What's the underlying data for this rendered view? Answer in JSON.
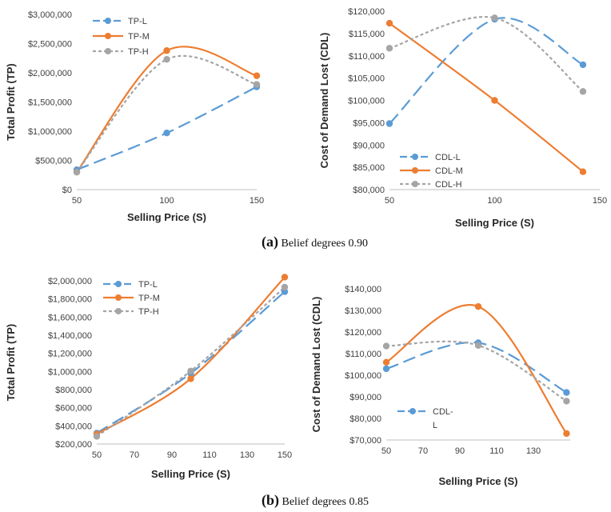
{
  "captions": [
    {
      "letter": "(a)",
      "text": "Belief degrees 0.90"
    },
    {
      "letter": "(b)",
      "text": "Belief degrees 0.85"
    }
  ],
  "chart_data": [
    {
      "id": "a-tp",
      "type": "line",
      "xlabel": "Selling Price (S)",
      "ylabel": "Total Profit (TP)",
      "xlim": [
        50,
        150
      ],
      "x_ticks": [
        50,
        100,
        150
      ],
      "ylim": [
        0,
        3000000
      ],
      "y_ticks": [
        0,
        500000,
        1000000,
        1500000,
        2000000,
        2500000,
        3000000
      ],
      "y_tick_labels": [
        "$0",
        "$500,000",
        "$1,000,000",
        "$1,500,000",
        "$2,000,000",
        "$2,500,000",
        "$3,000,000"
      ],
      "grid": false,
      "legend": "top-left",
      "series": [
        {
          "name": "TP-L",
          "color": "#5B9BD5",
          "dash": "long-dash",
          "x": [
            50,
            100,
            150
          ],
          "values": [
            340000,
            970000,
            1760000
          ]
        },
        {
          "name": "TP-M",
          "color": "#ED7D31",
          "dash": "solid",
          "x": [
            50,
            100,
            150
          ],
          "values": [
            300000,
            2380000,
            1950000
          ]
        },
        {
          "name": "TP-H",
          "color": "#A5A5A5",
          "dash": "dotted",
          "x": [
            50,
            100,
            150
          ],
          "values": [
            300000,
            2230000,
            1800000
          ]
        }
      ]
    },
    {
      "id": "a-cdl",
      "type": "line",
      "xlabel": "Selling Price (S)",
      "ylabel": "Cost of Demand Lost (CDL)",
      "xlim": [
        50,
        150
      ],
      "x_ticks": [
        50,
        100,
        150
      ],
      "ylim": [
        80000,
        120000
      ],
      "y_ticks": [
        80000,
        85000,
        90000,
        95000,
        100000,
        105000,
        110000,
        115000,
        120000
      ],
      "y_tick_labels": [
        "$80,000",
        "$85,000",
        "$90,000",
        "$95,000",
        "$100,000",
        "$105,000",
        "$110,000",
        "$115,000",
        "$120,000"
      ],
      "grid": false,
      "legend": "bottom-left",
      "series": [
        {
          "name": "CDL-L",
          "color": "#5B9BD5",
          "dash": "long-dash",
          "x": [
            50,
            100,
            142
          ],
          "values": [
            94800,
            118200,
            108000
          ]
        },
        {
          "name": "CDL-M",
          "color": "#ED7D31",
          "dash": "solid",
          "x": [
            50,
            100,
            142
          ],
          "values": [
            117300,
            100000,
            84000
          ]
        },
        {
          "name": "CDL-H",
          "color": "#A5A5A5",
          "dash": "dotted",
          "x": [
            50,
            100,
            142
          ],
          "values": [
            111700,
            118500,
            102000
          ]
        }
      ]
    },
    {
      "id": "b-tp",
      "type": "line",
      "xlabel": "Selling Price (S)",
      "ylabel": "Total Profit (TP)",
      "xlim": [
        50,
        150
      ],
      "x_ticks": [
        50,
        70,
        90,
        110,
        130,
        150
      ],
      "ylim": [
        200000,
        2000000
      ],
      "y_ticks": [
        200000,
        400000,
        600000,
        800000,
        1000000,
        1200000,
        1400000,
        1600000,
        1800000,
        2000000
      ],
      "y_tick_labels": [
        "$200,000",
        "$400,000",
        "$600,000",
        "$800,000",
        "$1,000,000",
        "$1,200,000",
        "$1,400,000",
        "$1,600,000",
        "$1,800,000",
        "$2,000,000"
      ],
      "grid": false,
      "legend": "top-left",
      "series": [
        {
          "name": "TP-L",
          "color": "#5B9BD5",
          "dash": "long-dash",
          "x": [
            50,
            100,
            150
          ],
          "values": [
            320000,
            980000,
            1880000
          ]
        },
        {
          "name": "TP-M",
          "color": "#ED7D31",
          "dash": "solid",
          "x": [
            50,
            100,
            150
          ],
          "values": [
            310000,
            920000,
            2040000
          ]
        },
        {
          "name": "TP-H",
          "color": "#A5A5A5",
          "dash": "dotted",
          "x": [
            50,
            100,
            150
          ],
          "values": [
            285000,
            1005000,
            1930000
          ]
        }
      ]
    },
    {
      "id": "b-cdl",
      "type": "line",
      "xlabel": "Selling Price (S)",
      "ylabel": "Cost of Demand Lost (CDL)",
      "xlim": [
        50,
        150
      ],
      "x_ticks": [
        50,
        70,
        90,
        110,
        130
      ],
      "ylim": [
        70000,
        140000
      ],
      "y_ticks": [
        70000,
        80000,
        90000,
        100000,
        110000,
        120000,
        130000,
        140000
      ],
      "y_tick_labels": [
        "$70,000",
        "$80,000",
        "$90,000",
        "$100,000",
        "$110,000",
        "$120,000",
        "$130,000",
        "$140,000"
      ],
      "grid": false,
      "legend": "bottom-left",
      "series": [
        {
          "name": "CDL-L",
          "color": "#5B9BD5",
          "dash": "long-dash",
          "x": [
            50,
            100,
            148
          ],
          "values": [
            103000,
            115000,
            92000
          ]
        },
        {
          "name": "",
          "color": "#ED7D31",
          "dash": "solid",
          "x": [
            50,
            100,
            148
          ],
          "values": [
            106000,
            131800,
            73000
          ]
        },
        {
          "name": "",
          "color": "#A5A5A5",
          "dash": "dotted",
          "x": [
            50,
            100,
            148
          ],
          "values": [
            113500,
            113800,
            88000
          ]
        }
      ]
    }
  ]
}
